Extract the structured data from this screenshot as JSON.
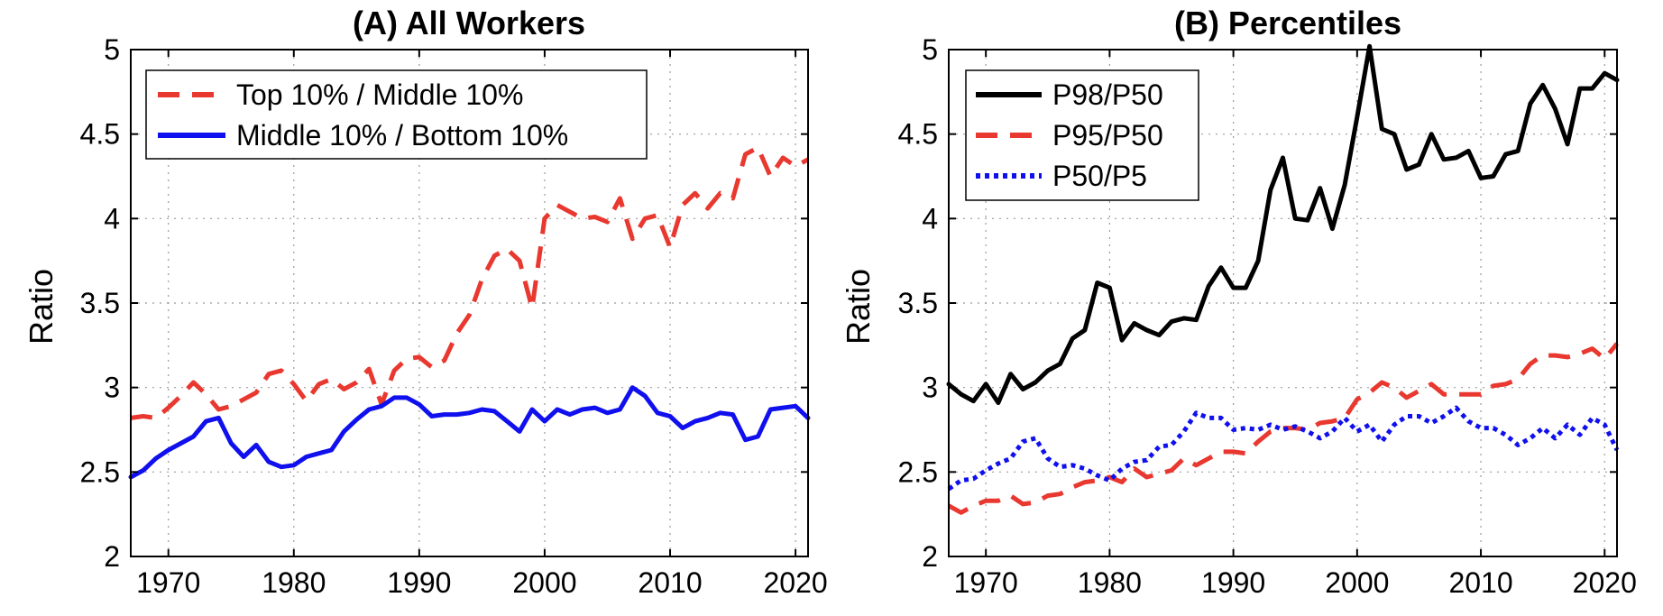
{
  "chart_data": [
    {
      "type": "line",
      "title": "(A) All Workers",
      "xlabel": "",
      "ylabel": "Ratio",
      "xlim": [
        1967,
        2021
      ],
      "ylim": [
        2,
        5
      ],
      "x_ticks": [
        "1970",
        "1980",
        "1990",
        "2000",
        "2010",
        "2020"
      ],
      "y_ticks": [
        "2",
        "2.5",
        "3",
        "3.5",
        "4",
        "4.5",
        "5"
      ],
      "grid": true,
      "legend_position": "top-left",
      "x": [
        1967,
        1968,
        1969,
        1970,
        1971,
        1972,
        1973,
        1974,
        1975,
        1976,
        1977,
        1978,
        1979,
        1980,
        1981,
        1982,
        1983,
        1984,
        1985,
        1986,
        1987,
        1988,
        1989,
        1990,
        1991,
        1992,
        1993,
        1994,
        1995,
        1996,
        1997,
        1998,
        1999,
        2000,
        2001,
        2002,
        2003,
        2004,
        2005,
        2006,
        2007,
        2008,
        2009,
        2010,
        2011,
        2012,
        2013,
        2014,
        2015,
        2016,
        2017,
        2018,
        2019,
        2020,
        2021
      ],
      "series": [
        {
          "name": "Top 10% / Middle 10%",
          "color": "#e8382f",
          "style": "dashed",
          "values": [
            2.82,
            2.83,
            2.82,
            2.88,
            2.95,
            3.03,
            2.96,
            2.87,
            2.89,
            2.93,
            2.97,
            3.08,
            3.1,
            3.02,
            2.92,
            3.02,
            3.05,
            2.99,
            3.03,
            3.11,
            2.9,
            3.1,
            3.17,
            3.18,
            3.12,
            3.16,
            3.32,
            3.43,
            3.64,
            3.78,
            3.82,
            3.75,
            3.47,
            4.0,
            4.08,
            4.04,
            4.0,
            4.01,
            3.98,
            4.12,
            3.88,
            4.0,
            4.02,
            3.83,
            4.08,
            4.15,
            4.06,
            4.15,
            4.12,
            4.38,
            4.42,
            4.25,
            4.36,
            4.31,
            4.35
          ]
        },
        {
          "name": "Middle 10% / Bottom 10%",
          "color": "#1010ee",
          "style": "solid",
          "values": [
            2.47,
            2.51,
            2.58,
            2.63,
            2.67,
            2.71,
            2.8,
            2.82,
            2.67,
            2.59,
            2.66,
            2.56,
            2.53,
            2.54,
            2.59,
            2.61,
            2.63,
            2.74,
            2.81,
            2.87,
            2.89,
            2.94,
            2.94,
            2.9,
            2.83,
            2.84,
            2.84,
            2.85,
            2.87,
            2.86,
            2.8,
            2.74,
            2.87,
            2.8,
            2.87,
            2.84,
            2.87,
            2.88,
            2.85,
            2.87,
            3.0,
            2.95,
            2.85,
            2.83,
            2.76,
            2.8,
            2.82,
            2.85,
            2.84,
            2.69,
            2.71,
            2.87,
            2.88,
            2.89,
            2.82
          ]
        }
      ]
    },
    {
      "type": "line",
      "title": "(B) Percentiles",
      "xlabel": "",
      "ylabel": "Ratio",
      "xlim": [
        1967,
        2021
      ],
      "ylim": [
        2,
        5
      ],
      "x_ticks": [
        "1970",
        "1980",
        "1990",
        "2000",
        "2010",
        "2020"
      ],
      "y_ticks": [
        "2",
        "2.5",
        "3",
        "3.5",
        "4",
        "4.5",
        "5"
      ],
      "grid": true,
      "legend_position": "top-left",
      "x": [
        1967,
        1968,
        1969,
        1970,
        1971,
        1972,
        1973,
        1974,
        1975,
        1976,
        1977,
        1978,
        1979,
        1980,
        1981,
        1982,
        1983,
        1984,
        1985,
        1986,
        1987,
        1988,
        1989,
        1990,
        1991,
        1992,
        1993,
        1994,
        1995,
        1996,
        1997,
        1998,
        1999,
        2000,
        2001,
        2002,
        2003,
        2004,
        2005,
        2006,
        2007,
        2008,
        2009,
        2010,
        2011,
        2012,
        2013,
        2014,
        2015,
        2016,
        2017,
        2018,
        2019,
        2020,
        2021
      ],
      "series": [
        {
          "name": "P98/P50",
          "color": "#000000",
          "style": "solid",
          "values": [
            3.02,
            2.96,
            2.92,
            3.02,
            2.91,
            3.08,
            2.99,
            3.03,
            3.1,
            3.14,
            3.29,
            3.34,
            3.62,
            3.59,
            3.28,
            3.38,
            3.34,
            3.31,
            3.39,
            3.41,
            3.4,
            3.6,
            3.71,
            3.59,
            3.59,
            3.75,
            4.17,
            4.36,
            4.0,
            3.99,
            4.18,
            3.94,
            4.2,
            4.6,
            5.02,
            4.53,
            4.5,
            4.29,
            4.32,
            4.5,
            4.35,
            4.36,
            4.4,
            4.24,
            4.25,
            4.38,
            4.4,
            4.68,
            4.79,
            4.65,
            4.44,
            4.77,
            4.77,
            4.86,
            4.82
          ]
        },
        {
          "name": "P95/P50",
          "color": "#e8382f",
          "style": "dashed",
          "values": [
            2.3,
            2.26,
            2.3,
            2.33,
            2.33,
            2.36,
            2.31,
            2.32,
            2.36,
            2.37,
            2.41,
            2.44,
            2.45,
            2.47,
            2.44,
            2.52,
            2.47,
            2.49,
            2.51,
            2.58,
            2.54,
            2.58,
            2.62,
            2.62,
            2.61,
            2.68,
            2.74,
            2.76,
            2.76,
            2.75,
            2.79,
            2.8,
            2.82,
            2.93,
            2.97,
            3.03,
            3.0,
            2.94,
            2.98,
            3.02,
            2.96,
            2.96,
            2.96,
            2.96,
            3.01,
            3.02,
            3.05,
            3.14,
            3.19,
            3.19,
            3.18,
            3.2,
            3.23,
            3.17,
            3.26
          ]
        },
        {
          "name": "P50/P5",
          "color": "#1010ee",
          "style": "dotted",
          "values": [
            2.4,
            2.45,
            2.46,
            2.51,
            2.55,
            2.58,
            2.68,
            2.7,
            2.58,
            2.53,
            2.54,
            2.52,
            2.48,
            2.45,
            2.52,
            2.56,
            2.57,
            2.65,
            2.66,
            2.74,
            2.85,
            2.82,
            2.82,
            2.75,
            2.76,
            2.75,
            2.78,
            2.75,
            2.77,
            2.74,
            2.7,
            2.74,
            2.82,
            2.74,
            2.78,
            2.68,
            2.78,
            2.83,
            2.83,
            2.79,
            2.83,
            2.88,
            2.8,
            2.76,
            2.76,
            2.72,
            2.66,
            2.7,
            2.76,
            2.7,
            2.78,
            2.72,
            2.82,
            2.78,
            2.63
          ]
        }
      ]
    }
  ]
}
